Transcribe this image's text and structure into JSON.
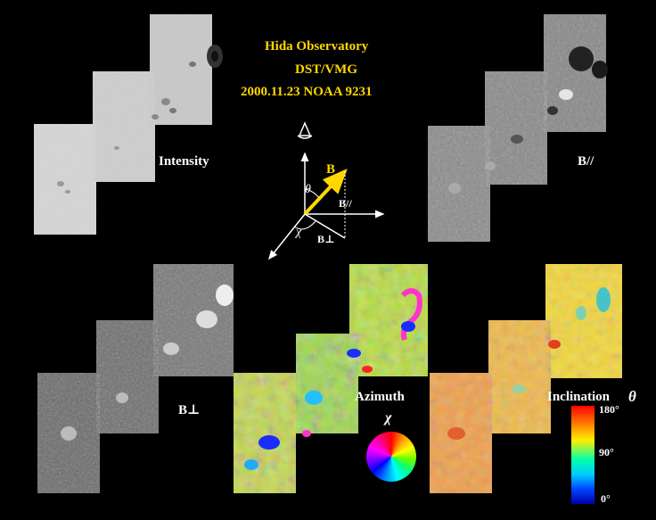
{
  "header": {
    "line1": "Hida Observatory",
    "line2": "DST/VMG",
    "line3": "2000.11.23   NOAA 9231",
    "color": "#ffd700"
  },
  "panels": {
    "intensity": "Intensity",
    "b_parallel": "B//",
    "b_perp": "B⊥",
    "azimuth": "Azimuth",
    "inclination": "Inclination",
    "inclination_symbol": "θ"
  },
  "diagram": {
    "vector_label": "B",
    "theta": "θ",
    "b_parallel_label": "B//",
    "b_perp_label": "B⊥",
    "chi": "χ",
    "vector_color": "#ffd700",
    "axis_color": "#ffffff"
  },
  "azimuth_wheel": {
    "symbol": "χ"
  },
  "colorbar": {
    "tick_top": "180°",
    "tick_mid": "90°",
    "tick_bottom": "0°"
  }
}
